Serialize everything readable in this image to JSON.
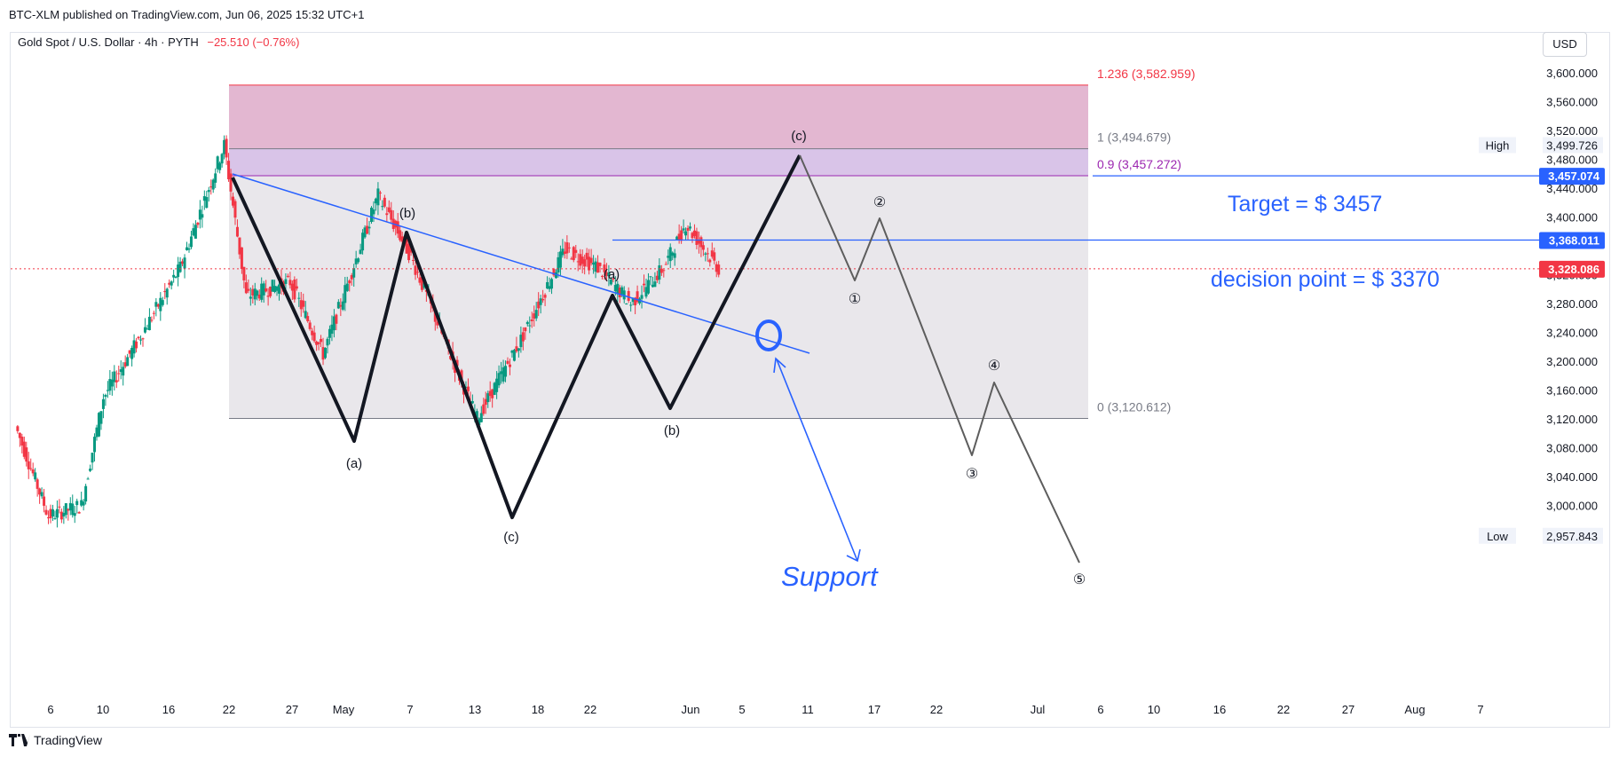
{
  "header": {
    "published": "BTC-XLM published on TradingView.com, Jun 06, 2025 15:32 UTC+1",
    "symbol": "Gold Spot / U.S. Dollar · 4h · PYTH",
    "change": "−25.510 (−0.76%)",
    "currency": "USD"
  },
  "footer": {
    "brand": "TradingView",
    "logo": "tradingview-logo-icon"
  },
  "colors": {
    "up": "#089981",
    "down": "#f23645",
    "accent": "#2962ff",
    "fib_red": "#f23645",
    "fib_purple": "#9c27b0",
    "zone_pink": "#e1b3cf",
    "zone_violet": "#d7c1e7",
    "zone_grey": "#e8e6ea",
    "wave_black": "#131722",
    "wave_grey": "#5d5d5d"
  },
  "chart_data": {
    "type": "candlestick",
    "title": "Gold Spot / U.S. Dollar · 4h · PYTH",
    "ylim": [
      2930,
      3640
    ],
    "y_ticks": [
      "3,000.000",
      "3,040.000",
      "3,080.000",
      "3,120.000",
      "3,160.000",
      "3,200.000",
      "3,240.000",
      "3,280.000",
      "3,320.000",
      "3,400.000",
      "3,440.000",
      "3,480.000",
      "3,520.000",
      "3,560.000",
      "3,600.000"
    ],
    "x_ticks": [
      "6",
      "10",
      "16",
      "22",
      "27",
      "May",
      "7",
      "13",
      "18",
      "22",
      "Jun",
      "5",
      "11",
      "17",
      "22",
      "Jul",
      "6",
      "10",
      "16",
      "22",
      "27",
      "Aug",
      "7"
    ],
    "price_key_points": [
      {
        "t": "Apr 3",
        "v": 3110
      },
      {
        "t": "Apr 6",
        "v": 2985
      },
      {
        "t": "Apr 9",
        "v": 3000
      },
      {
        "t": "Apr 11",
        "v": 3150
      },
      {
        "t": "Apr 14",
        "v": 3225
      },
      {
        "t": "Apr 18",
        "v": 3330
      },
      {
        "t": "Apr 22",
        "v": 3499.726
      },
      {
        "t": "Apr 24",
        "v": 3290
      },
      {
        "t": "Apr 28",
        "v": 3310
      },
      {
        "t": "May 1",
        "v": 3210
      },
      {
        "t": "May 6",
        "v": 3430
      },
      {
        "t": "May 9",
        "v": 3345
      },
      {
        "t": "May 12",
        "v": 3230
      },
      {
        "t": "May 15",
        "v": 3120.612
      },
      {
        "t": "May 19",
        "v": 3230
      },
      {
        "t": "May 23",
        "v": 3355
      },
      {
        "t": "May 26",
        "v": 3330
      },
      {
        "t": "May 29",
        "v": 3280
      },
      {
        "t": "Jun 1",
        "v": 3330
      },
      {
        "t": "Jun 3",
        "v": 3390
      },
      {
        "t": "Jun 6",
        "v": 3328.086
      }
    ],
    "fib_levels": [
      {
        "label": "1.236 (3,582.959)",
        "value": 3582.959,
        "color": "#f23645"
      },
      {
        "label": "1 (3,494.679)",
        "value": 3494.679,
        "color": "#787b86"
      },
      {
        "label": "0.9 (3,457.272)",
        "value": 3457.272,
        "color": "#9c27b0"
      },
      {
        "label": "0 (3,120.612)",
        "value": 3120.612,
        "color": "#787b86"
      }
    ],
    "price_labels": [
      {
        "text": "3,499.726",
        "tag": "High",
        "value": 3499.726,
        "style": "plain"
      },
      {
        "text": "3,457.074",
        "value": 3457.074,
        "style": "blue"
      },
      {
        "text": "3,368.011",
        "value": 3368.011,
        "style": "blue"
      },
      {
        "text": "3,328.086",
        "value": 3328.086,
        "style": "red"
      },
      {
        "text": "2,957.843",
        "tag": "Low",
        "value": 2957.843,
        "style": "plain"
      }
    ],
    "annotations": {
      "target": "Target = $ 3457",
      "decision": "decision point = $ 3370",
      "support": "Support"
    },
    "wave_labels_abc": [
      "(a)",
      "(b)",
      "(c)",
      "(b)",
      "(a)",
      "(c)",
      "(a)",
      "(b)",
      "(c)"
    ],
    "wave_labels_num": [
      "①",
      "②",
      "③",
      "④",
      "⑤"
    ]
  }
}
